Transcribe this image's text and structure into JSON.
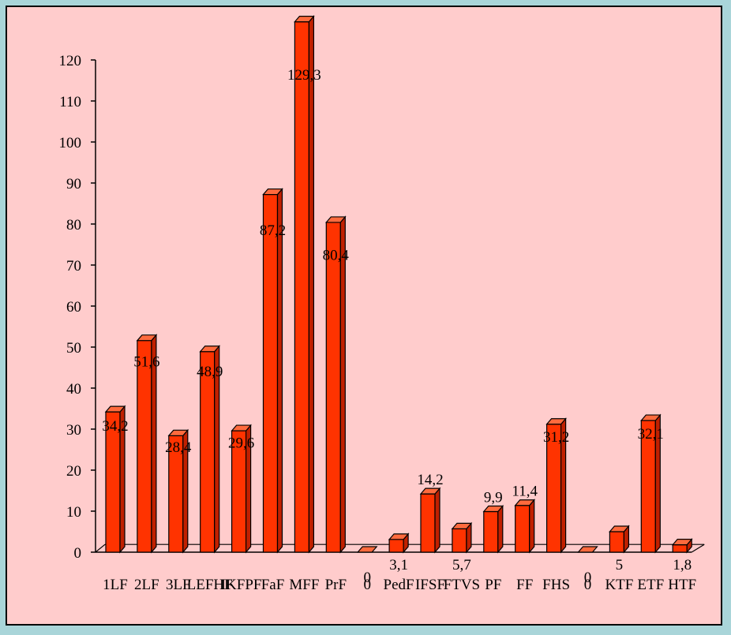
{
  "chart_data": {
    "type": "bar",
    "categories": [
      "1LF",
      "2LF",
      "3LF",
      "LEFHF",
      "IKFPF",
      "FaF",
      "MFF",
      "PrF",
      "0",
      "PedF",
      "IFSF",
      "FTVS",
      "PF",
      "FF",
      "FHS",
      "0",
      "KTF",
      "ETF",
      "HTF"
    ],
    "values": [
      34.2,
      51.6,
      28.4,
      48.9,
      29.6,
      87.2,
      129.3,
      80.4,
      0,
      3.1,
      14.2,
      5.7,
      9.9,
      11.4,
      31.2,
      0,
      5,
      32.1,
      1.8
    ],
    "data_labels": [
      "34,2",
      "51,6",
      "28,4",
      "48,9",
      "29,6",
      "87,2",
      "129,3",
      "80,4",
      "0",
      "3,1",
      "14,2",
      "5,7",
      "9,9",
      "11,4",
      "31,2",
      "0",
      "5",
      "32,1",
      "1,8"
    ],
    "ylim": [
      0,
      120
    ],
    "yticks": [
      "0",
      "10",
      "20",
      "30",
      "40",
      "50",
      "60",
      "70",
      "80",
      "90",
      "100",
      "110",
      "120"
    ],
    "title": "",
    "xlabel": "",
    "ylabel": "",
    "grid": false,
    "legend": "none",
    "colors": {
      "bar_front": "#ff3300",
      "bar_side": "#c02000",
      "bar_top": "#ff6a3d",
      "plot_background": "#ffcccc",
      "frame_background": "#a9d5d9"
    }
  }
}
